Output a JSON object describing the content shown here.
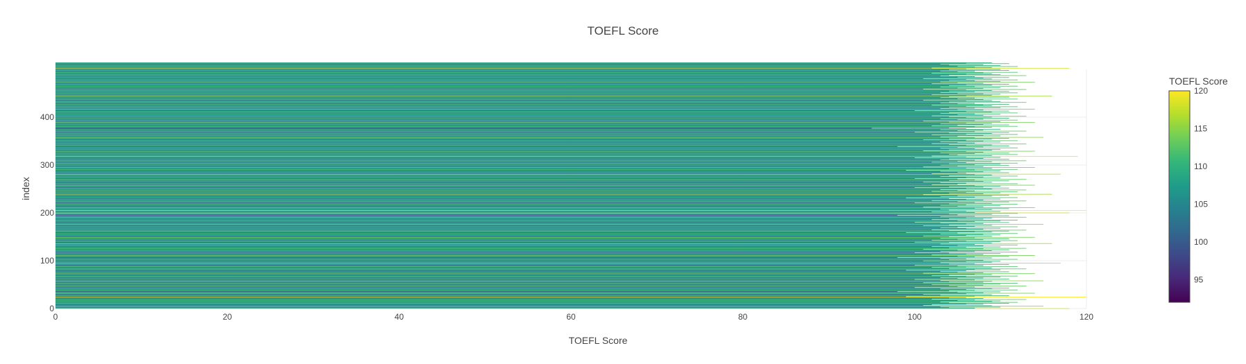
{
  "chart_data": {
    "type": "bar",
    "orientation": "horizontal",
    "title": "TOEFL Score",
    "xlabel": "TOEFL Score",
    "ylabel": "index",
    "xlim": [
      0,
      120
    ],
    "ylim": [
      0,
      500
    ],
    "x_ticks": [
      "0",
      "20",
      "40",
      "60",
      "80",
      "100",
      "120"
    ],
    "y_ticks": [
      "0",
      "100",
      "200",
      "300",
      "400"
    ],
    "grid": true,
    "legend": "none",
    "colorbar": {
      "title": "TOEFL Score",
      "min": 92,
      "max": 120,
      "ticks": [
        "95",
        "100",
        "105",
        "110",
        "115",
        "120"
      ],
      "colorscale": "Viridis"
    },
    "series": [
      {
        "values": [
          118,
          107,
          104,
          110,
          103,
          115,
          109,
          101,
          102,
          108,
          106,
          111,
          104,
          112,
          103,
          109,
          110,
          105,
          107,
          113,
          102,
          108,
          104,
          106,
          120,
          99,
          107,
          111,
          103,
          109,
          101,
          106,
          114,
          108,
          105,
          110,
          98,
          104,
          107,
          112,
          106,
          103,
          109,
          111,
          100,
          107,
          105,
          113,
          104,
          108,
          102,
          110,
          106,
          112,
          101,
          108,
          104,
          109,
          115,
          103,
          107,
          100,
          111,
          105,
          108,
          103,
          110,
          106,
          112,
          102,
          104,
          109,
          107,
          114,
          101,
          108,
          105,
          111,
          103,
          106,
          99,
          110,
          107,
          113,
          104,
          109,
          102,
          106,
          112,
          105,
          108,
          100,
          111,
          104,
          107,
          117,
          103,
          109,
          106,
          110,
          101,
          108,
          104,
          112,
          106,
          103,
          109,
          98,
          107,
          111,
          105,
          114,
          102,
          108,
          106,
          110,
          104,
          100,
          112,
          107,
          103,
          109,
          105,
          111,
          101,
          108,
          113,
          104,
          106,
          110,
          102,
          108,
          105,
          112,
          107,
          103,
          116,
          109,
          104,
          100,
          110,
          106,
          112,
          102,
          108,
          105,
          111,
          103,
          107,
          114,
          104,
          109,
          101,
          106,
          110,
          108,
          103,
          112,
          105,
          99,
          109,
          107,
          111,
          104,
          113,
          102,
          108,
          106,
          110,
          103,
          105,
          112,
          107,
          101,
          109,
          104,
          115,
          106,
          108,
          103,
          111,
          100,
          107,
          110,
          105,
          112,
          102,
          108,
          104,
          109,
          106,
          113,
          103,
          107,
          111,
          98,
          105,
          109,
          104,
          112,
          118,
          107,
          102,
          110,
          106,
          120,
          104,
          109,
          103,
          111,
          107,
          114,
          101,
          108,
          105,
          110,
          103,
          106,
          112,
          104,
          109,
          100,
          107,
          111,
          105,
          113,
          102,
          108,
          106,
          110,
          104,
          99,
          112,
          107,
          103,
          109,
          105,
          111,
          101,
          116,
          108,
          104,
          110,
          106,
          112,
          102,
          107,
          105,
          113,
          103,
          109,
          106,
          111,
          100,
          108,
          104,
          110,
          107,
          114,
          102,
          105,
          112,
          106,
          103,
          109,
          101,
          108,
          111,
          104,
          107,
          113,
          105,
          100,
          110,
          106,
          108,
          103,
          112,
          104,
          109,
          107,
          117,
          102,
          106,
          111,
          105,
          108,
          103,
          110,
          99,
          107,
          112,
          104,
          109,
          106,
          114,
          101,
          108,
          105,
          111,
          103,
          107,
          110,
          104,
          112,
          106,
          102,
          109,
          105,
          113,
          107,
          103,
          111,
          104,
          108,
          100,
          110,
          106,
          119,
          102,
          109,
          105,
          112,
          104,
          107,
          111,
          103,
          108,
          106,
          114,
          101,
          109,
          104,
          110,
          107,
          103,
          112,
          105,
          108,
          98,
          111,
          106,
          109,
          104,
          113,
          102,
          107,
          105,
          110,
          103,
          108,
          112,
          106,
          101,
          109,
          104,
          111,
          107,
          115,
          103,
          105,
          110,
          108,
          102,
          112,
          106,
          109,
          104,
          111,
          100,
          107,
          113,
          105,
          108,
          103,
          110,
          106,
          95,
          104,
          109,
          107,
          112,
          102,
          105,
          111,
          108,
          103,
          109,
          106,
          114,
          104,
          110,
          101,
          107,
          112,
          105,
          108,
          103,
          111,
          106,
          109,
          104,
          113,
          102,
          108,
          105,
          110,
          107,
          103,
          112,
          104,
          109,
          106,
          111,
          100,
          108,
          105,
          114,
          103,
          107,
          110,
          104,
          112,
          106,
          109,
          102,
          108,
          111,
          105,
          107,
          103,
          113,
          104,
          110,
          106,
          109,
          101,
          108,
          112,
          105,
          107,
          103,
          111,
          104,
          116,
          106,
          109,
          102,
          110,
          108,
          105,
          112,
          103,
          107,
          111,
          104,
          109,
          106,
          113,
          101,
          108,
          105,
          110,
          103,
          107,
          112,
          104,
          109,
          106,
          111,
          102,
          108,
          105,
          114,
          103,
          110,
          107,
          104,
          112,
          106,
          109,
          101,
          108,
          111,
          105,
          107,
          103,
          113,
          104,
          110,
          106,
          109,
          102,
          108,
          112,
          105,
          107,
          103,
          111,
          104,
          110,
          106,
          118,
          102,
          109,
          107,
          112,
          105,
          110,
          104,
          108,
          103,
          111,
          106,
          109
        ]
      }
    ]
  }
}
